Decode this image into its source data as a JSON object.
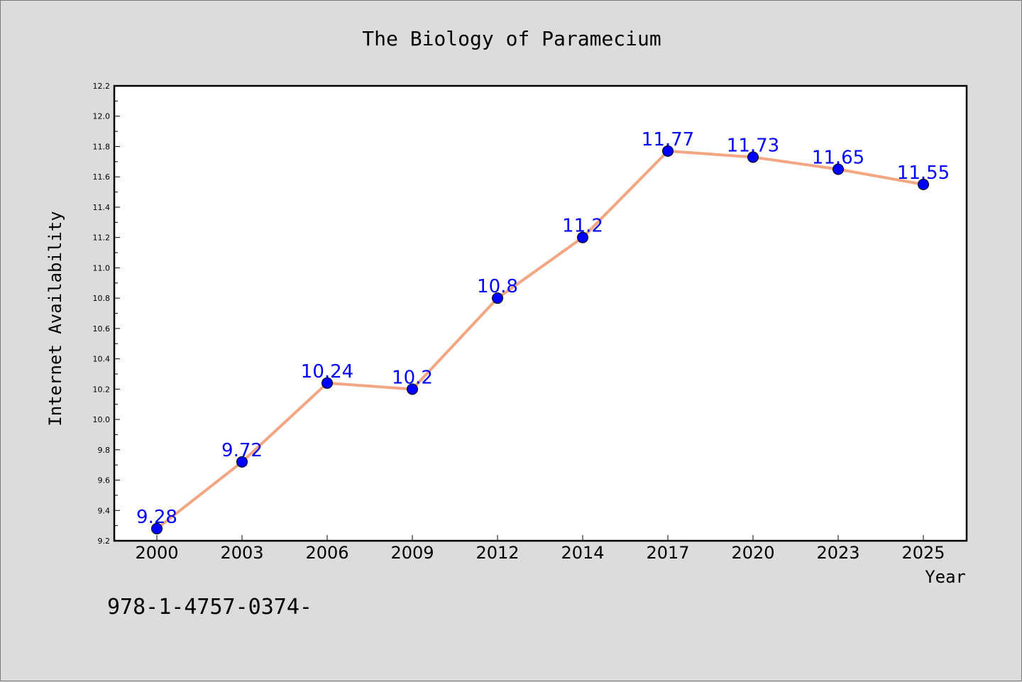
{
  "chart_data": {
    "type": "line",
    "title": "The Biology of Paramecium",
    "xlabel": "Year",
    "ylabel": "Internet Availability",
    "categories": [
      "2000",
      "2003",
      "2006",
      "2009",
      "2012",
      "2014",
      "2017",
      "2020",
      "2023",
      "2025"
    ],
    "series": [
      {
        "values": [
          9.28,
          9.72,
          10.24,
          10.2,
          10.8,
          11.2,
          11.77,
          11.73,
          11.65,
          11.55
        ],
        "labels": [
          "9.28",
          "9.72",
          "10.24",
          "10.2",
          "10.8",
          "11.2",
          "11.77",
          "11.73",
          "11.65",
          "11.55"
        ],
        "line_color": "#f4a582",
        "marker_color": "#0000ff"
      }
    ],
    "ylim": [
      9.2,
      12.2
    ],
    "yticks": [
      "9.2",
      "9.4",
      "9.6",
      "9.8",
      "10.0",
      "10.2",
      "10.4",
      "10.6",
      "10.8",
      "11.0",
      "11.2",
      "11.4",
      "11.6",
      "11.8",
      "12.0",
      "12.2"
    ],
    "grid": false,
    "legend": "none"
  },
  "footer_text": "978-1-4757-0374-",
  "colors": {
    "background": "#dcdcdc",
    "plot_area": "#ffffff",
    "data_label": "#0000ff"
  }
}
